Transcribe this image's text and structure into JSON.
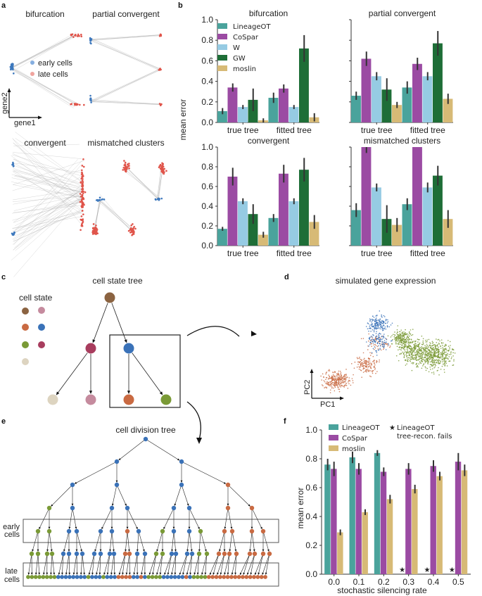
{
  "panel_labels": {
    "a": "a",
    "b": "b",
    "c": "c",
    "d": "d",
    "e": "e",
    "f": "f"
  },
  "colors": {
    "LineageOT": "#4aa39c",
    "CoSpar": "#9b4ba3",
    "W": "#96cbe3",
    "GW": "#1e6e37",
    "moslin": "#d7ba76",
    "error_bar": "#333333",
    "early": "#3d78bd",
    "late": "#e0544a",
    "edge": "#bbbbbb",
    "state_brown": "#8b6341",
    "state_pink": "#c58b9e",
    "state_orange": "#c96a42",
    "state_blue": "#3a72b8",
    "state_green": "#7a9a36",
    "state_crimson": "#a83d5e",
    "state_beige": "#ddd4c0"
  },
  "panel_a": {
    "subplots": [
      "bifurcation",
      "partial convergent",
      "convergent",
      "mismatched clusters"
    ],
    "legend": [
      {
        "label": "early cells",
        "color": "#85aee0"
      },
      {
        "label": "late cells",
        "color": "#f0a49e"
      }
    ],
    "xaxis": "gene1",
    "yaxis": "gene2"
  },
  "panel_c": {
    "title": "cell state tree",
    "legend_title": "cell state"
  },
  "panel_d": {
    "title": "simulated gene expression",
    "xaxis": "PC1",
    "yaxis": "PC2"
  },
  "panel_e": {
    "title": "cell division tree",
    "early_label_1": "early",
    "early_label_2": "cells",
    "late_label_1": "late",
    "late_label_2": "cells"
  },
  "chart_data": [
    {
      "type": "bar",
      "panel": "b",
      "title": "bifurcation",
      "ylabel": "mean error",
      "ylim": [
        0,
        1.0
      ],
      "yticks": [
        "0.0",
        "0.2",
        "0.4",
        "0.6",
        "0.8",
        "1.0"
      ],
      "categories": [
        "true tree",
        "fitted tree"
      ],
      "series": [
        {
          "name": "LineageOT",
          "values": [
            0.11,
            0.24
          ],
          "err": [
            0.03,
            0.05
          ]
        },
        {
          "name": "CoSpar",
          "values": [
            0.34,
            0.33
          ],
          "err": [
            0.04,
            0.04
          ]
        },
        {
          "name": "W",
          "values": [
            0.15,
            0.15
          ],
          "err": [
            0.02,
            0.02
          ]
        },
        {
          "name": "GW",
          "values": [
            0.22,
            0.72
          ],
          "err": [
            0.11,
            0.13
          ]
        },
        {
          "name": "moslin",
          "values": [
            0.02,
            0.05
          ],
          "err": [
            0.02,
            0.04
          ]
        }
      ],
      "legend": "top-left"
    },
    {
      "type": "bar",
      "panel": "b",
      "title": "partial convergent",
      "ylim": [
        0,
        1.0
      ],
      "categories": [
        "true tree",
        "fitted tree"
      ],
      "series": [
        {
          "name": "LineageOT",
          "values": [
            0.26,
            0.34
          ],
          "err": [
            0.04,
            0.06
          ]
        },
        {
          "name": "CoSpar",
          "values": [
            0.62,
            0.57
          ],
          "err": [
            0.07,
            0.06
          ]
        },
        {
          "name": "W",
          "values": [
            0.45,
            0.45
          ],
          "err": [
            0.04,
            0.04
          ]
        },
        {
          "name": "GW",
          "values": [
            0.32,
            0.77
          ],
          "err": [
            0.11,
            0.12
          ]
        },
        {
          "name": "moslin",
          "values": [
            0.17,
            0.23
          ],
          "err": [
            0.03,
            0.05
          ]
        }
      ]
    },
    {
      "type": "bar",
      "panel": "b",
      "title": "convergent",
      "ylim": [
        0,
        1.0
      ],
      "yticks": [
        "0.0",
        "0.2",
        "0.4",
        "0.6",
        "0.8",
        "1.0"
      ],
      "categories": [
        "true tree",
        "fitted tree"
      ],
      "series": [
        {
          "name": "LineageOT",
          "values": [
            0.17,
            0.28
          ],
          "err": [
            0.02,
            0.04
          ]
        },
        {
          "name": "CoSpar",
          "values": [
            0.7,
            0.73
          ],
          "err": [
            0.09,
            0.09
          ]
        },
        {
          "name": "W",
          "values": [
            0.45,
            0.45
          ],
          "err": [
            0.03,
            0.03
          ]
        },
        {
          "name": "GW",
          "values": [
            0.32,
            0.77
          ],
          "err": [
            0.1,
            0.12
          ]
        },
        {
          "name": "moslin",
          "values": [
            0.11,
            0.24
          ],
          "err": [
            0.03,
            0.07
          ]
        }
      ]
    },
    {
      "type": "bar",
      "panel": "b",
      "title": "mismatched clusters",
      "ylim": [
        0,
        1.0
      ],
      "categories": [
        "true tree",
        "fitted tree"
      ],
      "series": [
        {
          "name": "LineageOT",
          "values": [
            0.36,
            0.42
          ],
          "err": [
            0.07,
            0.06
          ]
        },
        {
          "name": "CoSpar",
          "values": [
            1.0,
            1.0
          ],
          "err": [
            0.06,
            0.0
          ]
        },
        {
          "name": "W",
          "values": [
            0.59,
            0.59
          ],
          "err": [
            0.04,
            0.05
          ]
        },
        {
          "name": "GW",
          "values": [
            0.27,
            0.71
          ],
          "err": [
            0.14,
            0.1
          ]
        },
        {
          "name": "moslin",
          "values": [
            0.21,
            0.27
          ],
          "err": [
            0.07,
            0.09
          ]
        }
      ]
    },
    {
      "type": "bar",
      "panel": "f",
      "title": "",
      "xlabel": "stochastic silencing rate",
      "ylabel": "mean error",
      "ylim": [
        0,
        1.0
      ],
      "yticks": [
        "0.0",
        "0.2",
        "0.4",
        "0.6",
        "0.8",
        "1.0"
      ],
      "categories": [
        "0.0",
        "0.1",
        "0.2",
        "0.3",
        "0.4",
        "0.5"
      ],
      "series": [
        {
          "name": "LineageOT",
          "values": [
            0.76,
            0.81,
            0.84,
            null,
            null,
            null
          ],
          "err": [
            0.04,
            0.04,
            0.02,
            null,
            null,
            null
          ]
        },
        {
          "name": "CoSpar",
          "values": [
            0.73,
            0.73,
            0.71,
            0.73,
            0.75,
            0.78
          ],
          "err": [
            0.05,
            0.04,
            0.03,
            0.04,
            0.04,
            0.06
          ]
        },
        {
          "name": "moslin",
          "values": [
            0.29,
            0.43,
            0.52,
            0.59,
            0.68,
            0.72
          ],
          "err": [
            0.02,
            0.02,
            0.03,
            0.03,
            0.03,
            0.04
          ]
        }
      ],
      "markers": [
        {
          "category": "0.3",
          "label": "LineageOT tree-recon. fails"
        },
        {
          "category": "0.4",
          "label": "LineageOT tree-recon. fails"
        },
        {
          "category": "0.5",
          "label": "LineageOT tree-recon. fails"
        }
      ],
      "legend": [
        {
          "label": "LineageOT",
          "kind": "bar"
        },
        {
          "label": "CoSpar",
          "kind": "bar"
        },
        {
          "label": "moslin",
          "kind": "bar"
        },
        {
          "label": "LineageOT",
          "label2": "tree-recon. fails",
          "kind": "star"
        }
      ],
      "legend_position": "top"
    }
  ]
}
